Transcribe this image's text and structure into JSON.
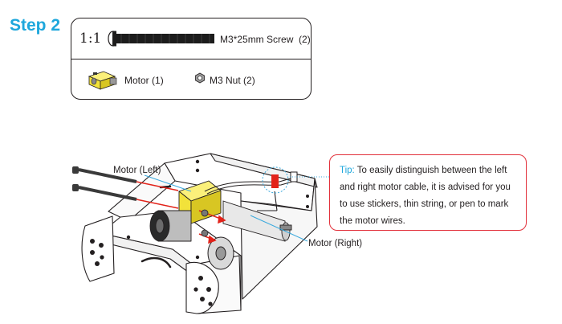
{
  "step": {
    "title": "Step 2"
  },
  "parts": {
    "scale": "1:1",
    "screw": {
      "label": "M3*25mm Screw",
      "qty": "(2)",
      "icon": "screw-icon"
    },
    "motor": {
      "label": "Motor",
      "qty": "(1)",
      "icon": "gear-motor-icon"
    },
    "nut": {
      "label": "M3 Nut",
      "qty": "(2)",
      "icon": "hex-nut-icon"
    }
  },
  "diagram": {
    "motor_left_label": "Motor (Left)",
    "motor_right_label": "Motor (Right)"
  },
  "tip": {
    "prefix": "Tip:",
    "text": "To easily distinguish between the left and right motor cable, it is advised for you to use stickers, thin string, or pen to mark the motor wires."
  },
  "colors": {
    "step_blue": "#1ea7dc",
    "tip_border_red": "#e2313b",
    "arrow_red": "#e2231a",
    "motor_yellow": "#f2e23a",
    "callout_blue": "#3aa9dd"
  }
}
